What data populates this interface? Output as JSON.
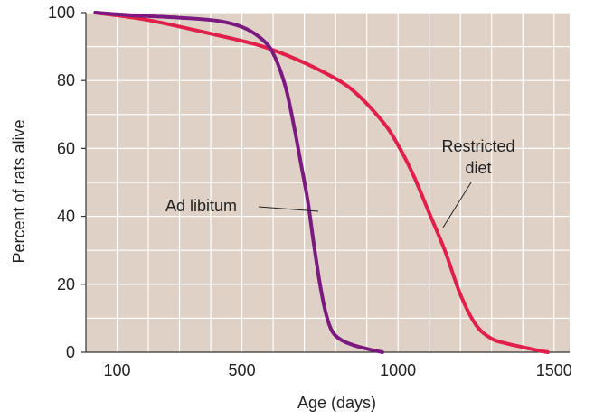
{
  "chart_data": {
    "type": "line",
    "title": "",
    "xlabel": "Age (days)",
    "ylabel": "Percent of rats alive",
    "xlim": [
      0,
      1550
    ],
    "ylim": [
      0,
      100
    ],
    "x_ticks": [
      100,
      500,
      1000,
      1500
    ],
    "x_tick_labels": [
      "100",
      "500",
      "1000",
      "1500"
    ],
    "y_ticks": [
      0,
      20,
      40,
      60,
      80,
      100
    ],
    "y_tick_labels": [
      "0",
      "20",
      "40",
      "60",
      "80",
      "100"
    ],
    "grid": true,
    "colors": {
      "background": "#dfd1c6",
      "grid": "#ffffff",
      "axis": "#333333"
    },
    "series": [
      {
        "name": "Ad libitum",
        "color": "#7a1a80",
        "points": [
          [
            30,
            100
          ],
          [
            150,
            99.2
          ],
          [
            300,
            98.5
          ],
          [
            420,
            97.6
          ],
          [
            500,
            95.8
          ],
          [
            560,
            92.5
          ],
          [
            600,
            88
          ],
          [
            640,
            78
          ],
          [
            670,
            65
          ],
          [
            690,
            55
          ],
          [
            710,
            45
          ],
          [
            730,
            32
          ],
          [
            750,
            20
          ],
          [
            770,
            11
          ],
          [
            790,
            6
          ],
          [
            820,
            3.5
          ],
          [
            860,
            2
          ],
          [
            900,
            1
          ],
          [
            950,
            0
          ]
        ]
      },
      {
        "name": "Restricted diet",
        "color": "#e0204b",
        "points": [
          [
            30,
            100
          ],
          [
            200,
            97.8
          ],
          [
            400,
            93.8
          ],
          [
            550,
            90.5
          ],
          [
            650,
            87.2
          ],
          [
            750,
            83
          ],
          [
            850,
            77.5
          ],
          [
            950,
            68
          ],
          [
            1000,
            61
          ],
          [
            1050,
            52
          ],
          [
            1100,
            41
          ],
          [
            1150,
            30
          ],
          [
            1200,
            17
          ],
          [
            1250,
            8
          ],
          [
            1300,
            4
          ],
          [
            1350,
            2.5
          ],
          [
            1400,
            1.5
          ],
          [
            1450,
            0.5
          ],
          [
            1480,
            0
          ]
        ]
      }
    ],
    "annotations": [
      {
        "text_lines": [
          "Ad libitum"
        ],
        "series": "Ad libitum"
      },
      {
        "text_lines": [
          "Restricted",
          "diet"
        ],
        "series": "Restricted diet"
      }
    ]
  }
}
